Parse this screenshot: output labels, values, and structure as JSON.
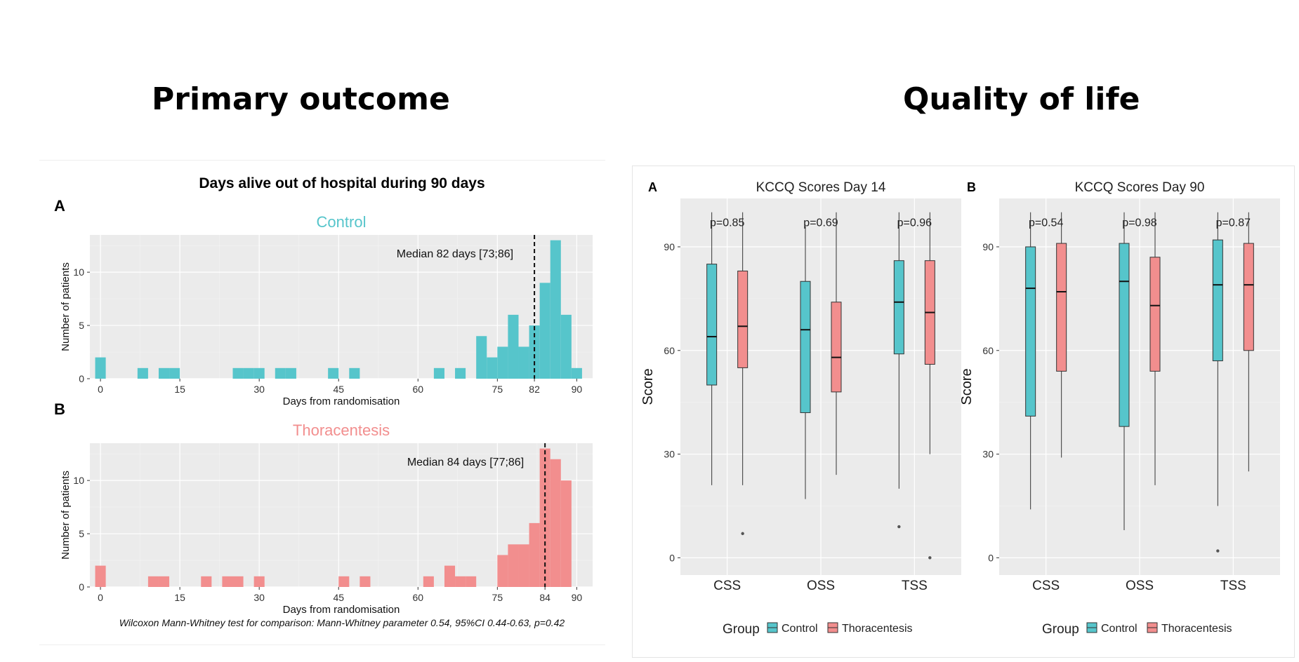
{
  "headings": {
    "left": "Primary outcome",
    "right": "Quality of life"
  },
  "colors": {
    "control": "#56C5CB",
    "thoracentesis": "#F28E8E",
    "panel_bg": "#EBEBEB",
    "grid": "#FFFFFF"
  },
  "primary": {
    "title": "Days alive out of hospital during 90 days",
    "footnote": "Wilcoxon Mann-Whitney test for comparison: Mann-Whitney parameter 0.54, 95%CI 0.44-0.63, p=0.42",
    "ylabel": "Number of patients",
    "xlabel": "Days from randomisation"
  },
  "kccq": {
    "ylabel": "Score",
    "legend_title": "Group",
    "legend_items": [
      "Control",
      "Thoracentesis"
    ],
    "categories": [
      "CSS",
      "OSS",
      "TSS"
    ]
  },
  "chart_data": [
    {
      "type": "bar",
      "panel": "A",
      "title": "Control",
      "xlabel": "Days from randomisation",
      "ylabel": "Number of patients",
      "xlim": [
        -2,
        93
      ],
      "ylim": [
        0,
        13.5
      ],
      "xticks": [
        0,
        15,
        30,
        45,
        60,
        75,
        82,
        90
      ],
      "yticks": [
        0,
        5,
        10
      ],
      "bin_width": 2,
      "bins": [
        [
          0,
          2
        ],
        [
          8,
          1
        ],
        [
          12,
          1
        ],
        [
          14,
          1
        ],
        [
          26,
          1
        ],
        [
          28,
          1
        ],
        [
          30,
          1
        ],
        [
          34,
          1
        ],
        [
          36,
          1
        ],
        [
          44,
          1
        ],
        [
          48,
          1
        ],
        [
          64,
          1
        ],
        [
          68,
          1
        ],
        [
          72,
          4
        ],
        [
          74,
          2
        ],
        [
          76,
          3
        ],
        [
          78,
          6
        ],
        [
          80,
          3
        ],
        [
          82,
          5
        ],
        [
          84,
          9
        ],
        [
          86,
          13
        ],
        [
          88,
          6
        ],
        [
          90,
          1
        ]
      ],
      "median_x": 82,
      "annotation": "Median 82 days [73;86]",
      "color": "#56C5CB"
    },
    {
      "type": "bar",
      "panel": "B",
      "title": "Thoracentesis",
      "xlabel": "Days from randomisation",
      "ylabel": "Number of patients",
      "xlim": [
        -2,
        93
      ],
      "ylim": [
        0,
        13.5
      ],
      "xticks": [
        0,
        15,
        30,
        45,
        60,
        75,
        84,
        90
      ],
      "yticks": [
        0,
        5,
        10
      ],
      "bin_width": 2,
      "bins": [
        [
          0,
          2
        ],
        [
          10,
          1
        ],
        [
          12,
          1
        ],
        [
          20,
          1
        ],
        [
          24,
          1
        ],
        [
          26,
          1
        ],
        [
          30,
          1
        ],
        [
          46,
          1
        ],
        [
          50,
          1
        ],
        [
          62,
          1
        ],
        [
          66,
          2
        ],
        [
          68,
          1
        ],
        [
          70,
          1
        ],
        [
          76,
          3
        ],
        [
          78,
          4
        ],
        [
          80,
          4
        ],
        [
          82,
          6
        ],
        [
          84,
          13
        ],
        [
          86,
          12
        ],
        [
          88,
          10
        ]
      ],
      "median_x": 84,
      "annotation": "Median 84 days [77;86]",
      "color": "#F28E8E"
    },
    {
      "type": "box",
      "panel": "A",
      "title": "KCCQ Scores Day 14",
      "ylabel": "Score",
      "ylim": [
        -5,
        104
      ],
      "yticks": [
        0,
        30,
        60,
        90
      ],
      "categories": [
        "CSS",
        "OSS",
        "TSS"
      ],
      "pvalues": [
        "p=0.85",
        "p=0.69",
        "p=0.96"
      ],
      "series": [
        {
          "name": "Control",
          "boxes": [
            {
              "min": 21,
              "q1": 50,
              "median": 64,
              "q3": 85,
              "max": 100,
              "outliers": []
            },
            {
              "min": 17,
              "q1": 42,
              "median": 66,
              "q3": 80,
              "max": 96,
              "outliers": []
            },
            {
              "min": 20,
              "q1": 59,
              "median": 74,
              "q3": 86,
              "max": 100,
              "outliers": [
                9
              ]
            }
          ]
        },
        {
          "name": "Thoracentesis",
          "boxes": [
            {
              "min": 21,
              "q1": 55,
              "median": 67,
              "q3": 83,
              "max": 100,
              "outliers": [
                7
              ]
            },
            {
              "min": 24,
              "q1": 48,
              "median": 58,
              "q3": 74,
              "max": 100,
              "outliers": []
            },
            {
              "min": 30,
              "q1": 56,
              "median": 71,
              "q3": 86,
              "max": 100,
              "outliers": [
                0
              ]
            }
          ]
        }
      ]
    },
    {
      "type": "box",
      "panel": "B",
      "title": "KCCQ Scores Day 90",
      "ylabel": "Score",
      "ylim": [
        -5,
        104
      ],
      "yticks": [
        0,
        30,
        60,
        90
      ],
      "categories": [
        "CSS",
        "OSS",
        "TSS"
      ],
      "pvalues": [
        "p=0.54",
        "p=0.98",
        "p=0.87"
      ],
      "series": [
        {
          "name": "Control",
          "boxes": [
            {
              "min": 14,
              "q1": 41,
              "median": 78,
              "q3": 90,
              "max": 100,
              "outliers": []
            },
            {
              "min": 8,
              "q1": 38,
              "median": 80,
              "q3": 91,
              "max": 100,
              "outliers": []
            },
            {
              "min": 15,
              "q1": 57,
              "median": 79,
              "q3": 92,
              "max": 100,
              "outliers": [
                2
              ]
            }
          ]
        },
        {
          "name": "Thoracentesis",
          "boxes": [
            {
              "min": 29,
              "q1": 54,
              "median": 77,
              "q3": 91,
              "max": 100,
              "outliers": []
            },
            {
              "min": 21,
              "q1": 54,
              "median": 73,
              "q3": 87,
              "max": 100,
              "outliers": []
            },
            {
              "min": 25,
              "q1": 60,
              "median": 79,
              "q3": 91,
              "max": 100,
              "outliers": []
            }
          ]
        }
      ]
    }
  ]
}
